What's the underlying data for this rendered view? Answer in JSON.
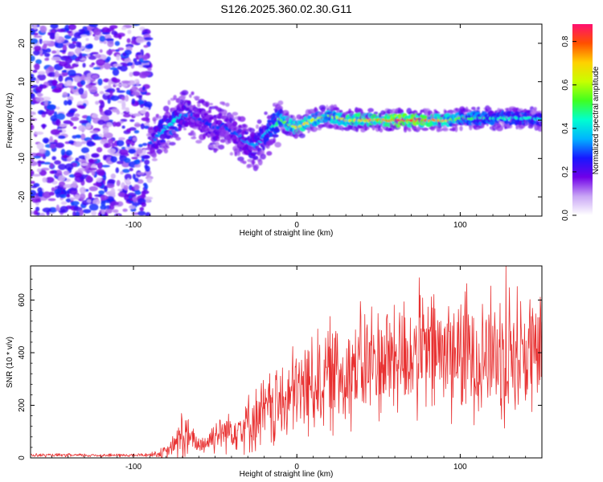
{
  "title": "S126.2025.360.02.30.G11",
  "chart_data": [
    {
      "type": "heatmap",
      "id": "spectrogram",
      "xlabel": "Height of straight line (km)",
      "ylabel": "Frequency (Hz)",
      "xlim": [
        -163,
        150
      ],
      "ylim": [
        -25,
        25
      ],
      "xticks": [
        -100,
        0,
        100
      ],
      "yticks": [
        -20,
        -10,
        0,
        10,
        20
      ],
      "colorbar": {
        "label": "Normalized spectral amplitude",
        "range": [
          0.0,
          0.88
        ],
        "ticks": [
          "0.0",
          "0.2",
          "0.4",
          "0.6",
          "0.8"
        ],
        "tick_values": [
          0.0,
          0.2,
          0.4,
          0.6,
          0.8
        ]
      },
      "noise_region": {
        "x_from": -163,
        "x_to": -90,
        "freq_range": [
          -25,
          25
        ],
        "amplitude_range": [
          0.05,
          0.3
        ]
      },
      "ridge": {
        "description": "frequency of peak spectral amplitude vs height",
        "height_km": [
          -90,
          -85,
          -80,
          -75,
          -70,
          -65,
          -60,
          -55,
          -50,
          -45,
          -40,
          -35,
          -30,
          -25,
          -20,
          -15,
          -10,
          -5,
          0,
          5,
          10,
          15,
          20,
          25,
          30,
          35,
          40,
          45,
          50,
          55,
          60,
          65,
          70,
          75,
          80,
          85,
          90,
          95,
          100,
          105,
          110,
          115,
          120,
          125,
          130,
          135,
          140,
          145,
          150
        ],
        "frequency_hz": [
          -6,
          -4,
          -2,
          0,
          1,
          2,
          0,
          -1,
          -2,
          -1,
          -3,
          -4,
          -6,
          -7,
          -4,
          -2,
          0,
          -1,
          -2,
          -1,
          0,
          0.5,
          1,
          0.5,
          0,
          0,
          0,
          0,
          0,
          0,
          0,
          0,
          0,
          0,
          0,
          0,
          0,
          0,
          0.5,
          0.5,
          0.5,
          0.5,
          0.5,
          0.5,
          0.5,
          0.5,
          0.5,
          0.5,
          0
        ],
        "peak_amplitude": [
          0.3,
          0.35,
          0.4,
          0.45,
          0.35,
          0.3,
          0.3,
          0.28,
          0.3,
          0.3,
          0.3,
          0.32,
          0.35,
          0.35,
          0.38,
          0.45,
          0.55,
          0.6,
          0.7,
          0.7,
          0.65,
          0.62,
          0.6,
          0.65,
          0.7,
          0.72,
          0.75,
          0.75,
          0.78,
          0.8,
          0.85,
          0.88,
          0.86,
          0.82,
          0.8,
          0.78,
          0.75,
          0.6,
          0.55,
          0.55,
          0.5,
          0.5,
          0.48,
          0.48,
          0.45,
          0.45,
          0.45,
          0.45,
          0.4
        ]
      }
    },
    {
      "type": "line",
      "id": "snr",
      "xlabel": "Height of straight line (km)",
      "ylabel": "SNR (10 * v/v)",
      "xlim": [
        -163,
        150
      ],
      "ylim": [
        0,
        730
      ],
      "xticks": [
        -100,
        0,
        100
      ],
      "yticks": [
        0,
        200,
        400,
        600
      ],
      "series": [
        {
          "name": "SNR",
          "color": "#e83030",
          "x": [
            -163,
            -150,
            -140,
            -130,
            -120,
            -110,
            -100,
            -90,
            -80,
            -75,
            -71,
            -70,
            -65,
            -60,
            -55,
            -50,
            -45,
            -40,
            -35,
            -30,
            -25,
            -20,
            -15,
            -10,
            -5,
            0,
            5,
            10,
            15,
            20,
            25,
            30,
            35,
            40,
            45,
            50,
            55,
            60,
            65,
            70,
            75,
            80,
            85,
            90,
            95,
            100,
            105,
            110,
            115,
            120,
            125,
            128,
            130,
            135,
            140,
            145,
            150
          ],
          "y_center": [
            10,
            10,
            10,
            10,
            10,
            10,
            10,
            12,
            20,
            50,
            80,
            90,
            70,
            50,
            60,
            90,
            100,
            110,
            120,
            130,
            150,
            170,
            190,
            200,
            220,
            250,
            270,
            290,
            300,
            310,
            320,
            330,
            340,
            350,
            360,
            370,
            380,
            385,
            390,
            395,
            400,
            400,
            400,
            400,
            400,
            400,
            400,
            400,
            400,
            400,
            400,
            400,
            400,
            400,
            400,
            400,
            400
          ],
          "y_spread": [
            8,
            8,
            8,
            8,
            8,
            8,
            8,
            10,
            30,
            50,
            120,
            170,
            60,
            50,
            60,
            80,
            90,
            100,
            110,
            130,
            150,
            170,
            190,
            200,
            210,
            220,
            230,
            240,
            250,
            260,
            260,
            260,
            270,
            270,
            280,
            280,
            280,
            290,
            290,
            290,
            300,
            300,
            300,
            300,
            300,
            300,
            300,
            300,
            300,
            300,
            300,
            320,
            320,
            310,
            300,
            300,
            300
          ],
          "peak": {
            "x": 128,
            "y": 730
          }
        }
      ]
    }
  ]
}
